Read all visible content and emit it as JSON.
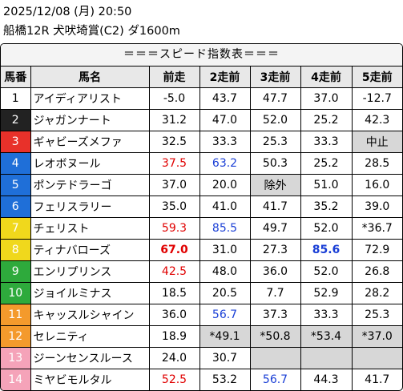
{
  "header": {
    "line1": "2025/12/08 (月) 20:50",
    "line2": "船橋12R 犬吠埼賞(C2) ダ1600m"
  },
  "table_title": "＝＝＝スピード指数表＝＝＝",
  "columns": [
    "馬番",
    "馬名",
    "前走",
    "2走前",
    "3走前",
    "4走前",
    "5走前"
  ],
  "frame_colors": [
    "#ffffff",
    "#222222",
    "#e8312a",
    "#1f6fd8",
    "#f0d81c",
    "#2eaa3c",
    "#f49a2c",
    "#f5a3b9"
  ],
  "rows": [
    {
      "no": "1",
      "frame": 0,
      "name": "アイディアリスト",
      "vals": [
        "-5.0",
        "43.7",
        "47.7",
        "37.0",
        "-12.7"
      ]
    },
    {
      "no": "2",
      "frame": 1,
      "name": "ジャガンナート",
      "vals": [
        "31.2",
        "47.0",
        "52.0",
        "25.2",
        "42.3"
      ]
    },
    {
      "no": "3",
      "frame": 2,
      "name": "ギャビーズメファ",
      "vals": [
        "32.5",
        "33.3",
        "25.3",
        "33.3",
        "中止"
      ]
    },
    {
      "no": "4",
      "frame": 3,
      "name": "レオボヌール",
      "vals": [
        "37.5",
        "63.2",
        "50.3",
        "25.2",
        "28.5"
      ]
    },
    {
      "no": "5",
      "frame": 3,
      "name": "ポンテドラーゴ",
      "vals": [
        "37.0",
        "20.0",
        "除外",
        "51.0",
        "16.0"
      ]
    },
    {
      "no": "6",
      "frame": 3,
      "name": "フェリスラリー",
      "vals": [
        "35.0",
        "41.0",
        "41.7",
        "35.2",
        "39.0"
      ]
    },
    {
      "no": "7",
      "frame": 4,
      "name": "チェリスト",
      "vals": [
        "59.3",
        "85.5",
        "49.7",
        "52.0",
        "*36.7"
      ]
    },
    {
      "no": "8",
      "frame": 4,
      "name": "ティナバローズ",
      "vals": [
        "67.0",
        "31.0",
        "27.3",
        "85.6",
        "72.9"
      ]
    },
    {
      "no": "9",
      "frame": 5,
      "name": "エンリプリンス",
      "vals": [
        "42.5",
        "48.0",
        "36.0",
        "52.0",
        "26.8"
      ]
    },
    {
      "no": "10",
      "frame": 5,
      "name": "ジョイルミナス",
      "vals": [
        "18.5",
        "20.5",
        "7.7",
        "52.9",
        "28.2"
      ]
    },
    {
      "no": "11",
      "frame": 6,
      "name": "キャッスルシャイン",
      "vals": [
        "36.0",
        "56.7",
        "37.3",
        "33.3",
        "25.3"
      ]
    },
    {
      "no": "12",
      "frame": 6,
      "name": "セレニティ",
      "vals": [
        "18.9",
        "*49.1",
        "*50.8",
        "*53.4",
        "*37.0"
      ]
    },
    {
      "no": "13",
      "frame": 7,
      "name": "ジーンセンスルース",
      "vals": [
        "24.0",
        "30.7",
        "",
        "",
        ""
      ]
    },
    {
      "no": "14",
      "frame": 7,
      "name": "ミヤビモルタル",
      "vals": [
        "52.5",
        "53.2",
        "56.7",
        "44.3",
        "41.7"
      ]
    }
  ],
  "cell_styles": {
    "red": [
      "3-0",
      "6-0",
      "7-0",
      "8-0",
      "13-0"
    ],
    "blue": [
      "3-1",
      "6-1",
      "7-3",
      "10-1",
      "13-2"
    ],
    "bold": [
      "7-0",
      "7-3"
    ],
    "gray": [
      "2-4",
      "4-2",
      "11-1",
      "11-2",
      "11-3",
      "11-4",
      "12-2",
      "12-3",
      "12-4"
    ]
  }
}
